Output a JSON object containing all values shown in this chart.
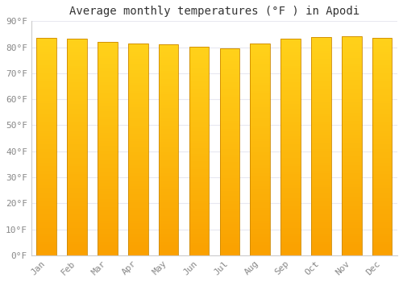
{
  "title": "Average monthly temperatures (°F ) in Apodi",
  "months": [
    "Jan",
    "Feb",
    "Mar",
    "Apr",
    "May",
    "Jun",
    "Jul",
    "Aug",
    "Sep",
    "Oct",
    "Nov",
    "Dec"
  ],
  "values": [
    83.5,
    83.3,
    82.0,
    81.5,
    81.1,
    80.1,
    79.5,
    81.5,
    83.3,
    84.0,
    84.2,
    83.5
  ],
  "ylim": [
    0,
    90
  ],
  "yticks": [
    0,
    10,
    20,
    30,
    40,
    50,
    60,
    70,
    80,
    90
  ],
  "bar_color_center": "#FFB800",
  "bar_color_edge": "#E08000",
  "background_color": "#FFFFFF",
  "grid_color": "#E8E8F0",
  "title_fontsize": 10,
  "tick_fontsize": 8,
  "tick_color": "#888888",
  "bar_edge_color": "#BB8800",
  "bar_width": 0.65
}
